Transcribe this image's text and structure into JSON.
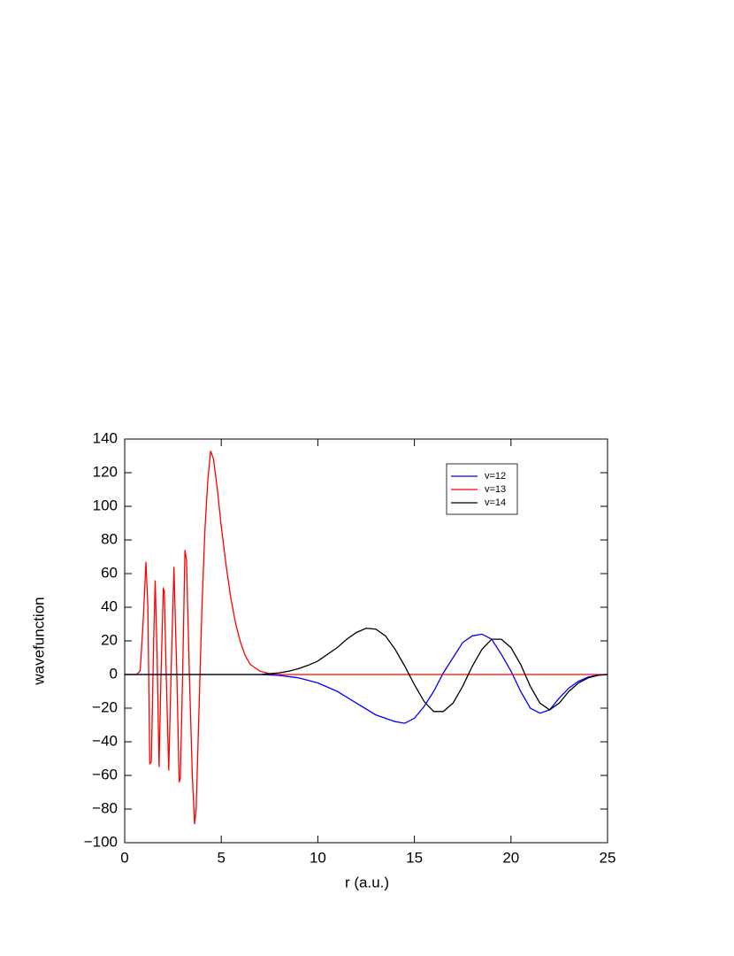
{
  "chart_data": {
    "type": "line",
    "xlabel": "r (a.u.)",
    "ylabel": "wavefunction",
    "xlim": [
      0,
      25
    ],
    "ylim": [
      -100,
      140
    ],
    "xticks": [
      0,
      5,
      10,
      15,
      20,
      25
    ],
    "yticks": [
      {
        "value": -100,
        "label": "−100"
      },
      {
        "value": -80,
        "label": "−80"
      },
      {
        "value": -60,
        "label": "−60"
      },
      {
        "value": -40,
        "label": "−40"
      },
      {
        "value": -20,
        "label": "−20"
      },
      0,
      20,
      40,
      60,
      80,
      100,
      120,
      140
    ],
    "legend": "upper right",
    "series": [
      {
        "name": "v=12",
        "color": "#0000ff",
        "x": [
          0,
          7,
          8,
          9,
          10,
          11,
          12,
          13,
          14,
          14.5,
          15,
          15.5,
          16,
          16.5,
          17,
          17.5,
          18,
          18.5,
          19,
          19.5,
          20,
          20.5,
          21,
          21.5,
          22,
          22.5,
          23,
          23.5,
          24,
          24.5,
          25
        ],
        "values": [
          0,
          0,
          -0.5,
          -2,
          -5,
          -10,
          -17,
          -24,
          -28,
          -29,
          -26,
          -19,
          -10,
          1,
          10,
          19,
          23,
          24,
          21,
          12,
          2,
          -10,
          -20,
          -23,
          -21,
          -14,
          -8,
          -4,
          -1.5,
          -0.3,
          0
        ]
      },
      {
        "name": "v=13",
        "color": "#ff0000",
        "x": [
          0,
          0.6,
          0.8,
          0.95,
          1.1,
          1.2,
          1.3,
          1.38,
          1.5,
          1.58,
          1.68,
          1.78,
          1.88,
          2.0,
          2.05,
          2.15,
          2.28,
          2.4,
          2.55,
          2.7,
          2.82,
          2.88,
          3.0,
          3.12,
          3.2,
          3.35,
          3.5,
          3.62,
          3.7,
          3.85,
          4.0,
          4.15,
          4.3,
          4.45,
          4.6,
          4.8,
          5.0,
          5.25,
          5.5,
          5.75,
          6.0,
          6.25,
          6.5,
          7.0,
          7.5,
          8.0,
          25
        ],
        "values": [
          0,
          0,
          2,
          30,
          67,
          40,
          -53,
          -52,
          20,
          56,
          10,
          -55,
          0,
          51,
          50,
          0,
          -57,
          0,
          64,
          0,
          -64,
          -62,
          0,
          74,
          68,
          0,
          -60,
          -89,
          -80,
          -20,
          40,
          85,
          115,
          133,
          128,
          110,
          88,
          65,
          45,
          30,
          19,
          11,
          6,
          2,
          0.5,
          0,
          0
        ]
      },
      {
        "name": "v=14",
        "color": "#000000",
        "x": [
          0,
          7,
          7.5,
          8,
          8.5,
          9,
          9.5,
          10,
          10.5,
          11,
          11.5,
          12,
          12.5,
          13,
          13.5,
          14,
          14.5,
          15,
          15.5,
          16,
          16.5,
          17,
          17.5,
          18,
          18.5,
          19,
          19.5,
          20,
          20.5,
          21,
          21.5,
          22,
          22.5,
          23,
          23.5,
          24,
          24.5,
          25
        ],
        "values": [
          0,
          0,
          0.5,
          1,
          2,
          3.5,
          5.5,
          8,
          12,
          16,
          21,
          25,
          27.5,
          27,
          23,
          15,
          5,
          -6,
          -16,
          -22,
          -22,
          -17,
          -7,
          5,
          15,
          21,
          21,
          16,
          6,
          -7,
          -17,
          -21,
          -17,
          -10,
          -5,
          -2,
          -0.5,
          0
        ]
      }
    ]
  }
}
